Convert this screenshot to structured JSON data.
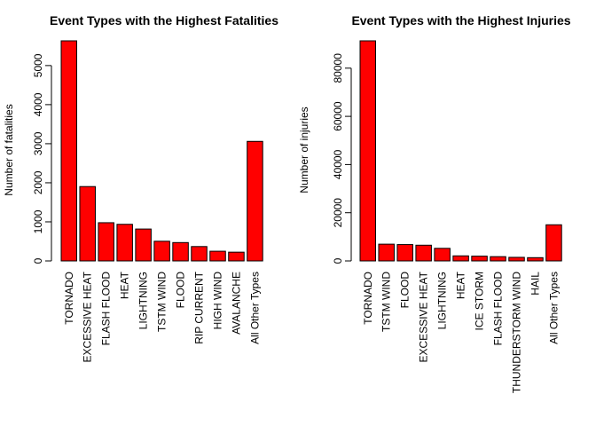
{
  "chart_data": [
    {
      "type": "bar",
      "title": "Event Types with the Highest Fatalities",
      "xlabel": "",
      "ylabel": "Number of fatalities",
      "ylim": [
        0,
        5633
      ],
      "yticks": [
        0,
        1000,
        2000,
        3000,
        4000,
        5000
      ],
      "categories": [
        "TORNADO",
        "EXCESSIVE HEAT",
        "FLASH FLOOD",
        "HEAT",
        "LIGHTNING",
        "TSTM WIND",
        "FLOOD",
        "RIP CURRENT",
        "HIGH WIND",
        "AVALANCHE",
        "All Other Types"
      ],
      "values": [
        5633,
        1903,
        978,
        937,
        816,
        504,
        470,
        368,
        248,
        224,
        3060
      ],
      "bar_color": "#ff0000",
      "grid": false
    },
    {
      "type": "bar",
      "title": "Event Types with the Highest Injuries",
      "xlabel": "",
      "ylabel": "Number of injuries",
      "ylim": [
        0,
        91346
      ],
      "yticks": [
        0,
        20000,
        40000,
        60000,
        80000
      ],
      "categories": [
        "TORNADO",
        "TSTM WIND",
        "FLOOD",
        "EXCESSIVE HEAT",
        "LIGHTNING",
        "HEAT",
        "ICE STORM",
        "FLASH FLOOD",
        "THUNDERSTORM WIND",
        "HAIL",
        "All Other Types"
      ],
      "values": [
        91346,
        6957,
        6789,
        6525,
        5230,
        2100,
        1975,
        1777,
        1488,
        1361,
        15000
      ],
      "bar_color": "#ff0000",
      "grid": false
    }
  ]
}
